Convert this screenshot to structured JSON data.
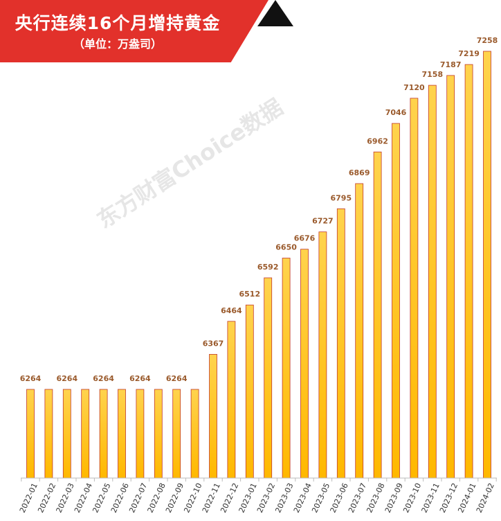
{
  "title_banner": {
    "title": "央行连续16个月增持黄金",
    "subtitle": "（单位：万盎司）"
  },
  "watermark": "东方财富Choice数据",
  "colors": {
    "banner_red": "#e2312b",
    "bar_fill_top": "#ffd34d",
    "bar_fill_bottom": "#ffb800",
    "bar_outline": "#c0392b",
    "value_label": "#9a5a2c"
  },
  "chart_data": {
    "type": "bar",
    "categories": [
      "2022-01",
      "2022-02",
      "2022-03",
      "2022-04",
      "2022-05",
      "2022-06",
      "2022-07",
      "2022-08",
      "2022-09",
      "2022-10",
      "2022-11",
      "2022-12",
      "2023-01",
      "2023-02",
      "2023-03",
      "2023-04",
      "2023-05",
      "2023-06",
      "2023-07",
      "2023-08",
      "2023-09",
      "2023-10",
      "2023-11",
      "2023-12",
      "2024-01",
      "2024-02"
    ],
    "values": [
      6264,
      6264,
      6264,
      6264,
      6264,
      6264,
      6264,
      6264,
      6264,
      6264,
      6367,
      6464,
      6512,
      6592,
      6650,
      6676,
      6727,
      6795,
      6869,
      6962,
      7046,
      7120,
      7158,
      7187,
      7219,
      7258
    ],
    "value_labels": [
      "6264",
      "",
      "6264",
      "",
      "6264",
      "",
      "6264",
      "",
      "6264",
      "",
      "6367",
      "6464",
      "6512",
      "6592",
      "6650",
      "6676",
      "6727",
      "6795",
      "6869",
      "6962",
      "7046",
      "7120",
      "7158",
      "7187",
      "7219",
      "7258"
    ],
    "title": "央行连续16个月增持黄金",
    "subtitle": "（单位：万盎司）",
    "xlabel": "",
    "ylabel": "",
    "y_axis_visible": false,
    "grid": false,
    "legend": "none"
  }
}
